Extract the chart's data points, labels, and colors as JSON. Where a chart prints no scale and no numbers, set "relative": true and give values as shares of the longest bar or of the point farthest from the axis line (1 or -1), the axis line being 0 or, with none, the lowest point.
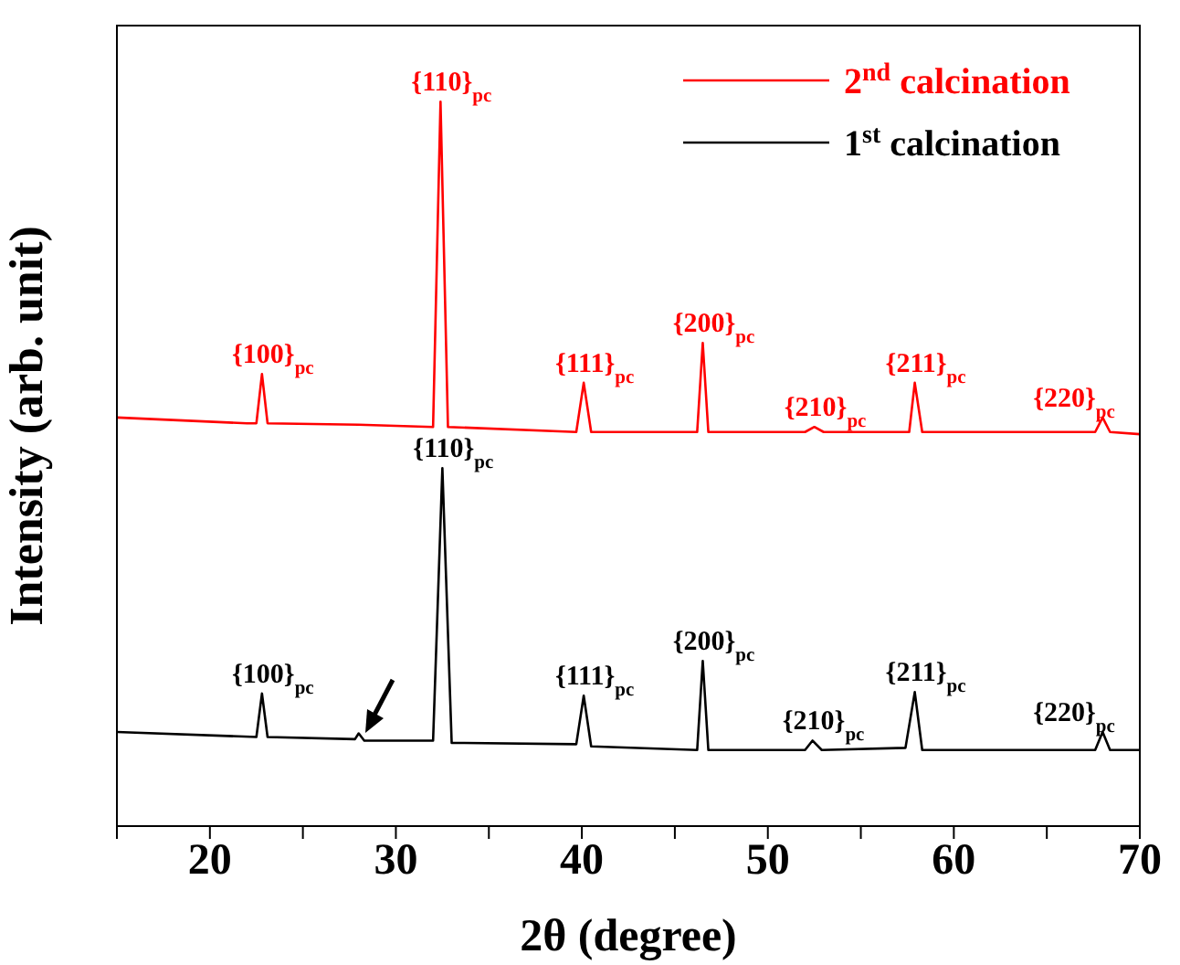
{
  "chart_data": {
    "type": "line",
    "relative": true,
    "xlabel": "2θ (degree)",
    "ylabel": "Intensity (arb. unit)",
    "xlim": [
      15,
      70
    ],
    "xticks": [
      {
        "value": 15,
        "label": null
      },
      20,
      {
        "value": 25,
        "label": null
      },
      30,
      {
        "value": 35,
        "label": null
      },
      40,
      {
        "value": 45,
        "label": null
      },
      50,
      {
        "value": 55,
        "label": null
      },
      60,
      {
        "value": 65,
        "label": null
      },
      70
    ],
    "legend": "top right",
    "grid": false,
    "marker": "none",
    "line_style": "solid",
    "series": [
      {
        "name": "2$^{nd}$ calcination",
        "color": "#ff0000",
        "x": [
          15,
          22,
          22.5,
          22.8,
          23.1,
          28,
          32,
          32.4,
          32.8,
          39.7,
          40.1,
          40.5,
          46.2,
          46.5,
          46.8,
          52,
          52.5,
          53,
          57.6,
          57.9,
          58.3,
          67.6,
          68,
          68.4,
          70
        ],
        "values": [
          0.564,
          0.556,
          0.556,
          0.624,
          0.556,
          0.554,
          0.551,
          1,
          0.551,
          0.544,
          0.612,
          0.544,
          0.544,
          0.667,
          0.544,
          0.544,
          0.551,
          0.544,
          0.544,
          0.612,
          0.544,
          0.544,
          0.564,
          0.544,
          0.541
        ]
      },
      {
        "name": "1$^{st}$ calcination",
        "color": "#000000",
        "x": [
          15,
          22.5,
          22.8,
          23.1,
          27.8,
          28,
          28.3,
          32,
          32.5,
          33,
          39.7,
          40.1,
          40.5,
          46.2,
          46.5,
          46.8,
          52,
          52.4,
          52.9,
          57.4,
          57.9,
          58.3,
          67.6,
          68,
          68.4,
          70
        ],
        "values": [
          0.13,
          0.123,
          0.183,
          0.123,
          0.12,
          0.128,
          0.118,
          0.118,
          0.494,
          0.115,
          0.113,
          0.18,
          0.11,
          0.105,
          0.228,
          0.105,
          0.105,
          0.118,
          0.105,
          0.108,
          0.185,
          0.105,
          0.105,
          0.13,
          0.105,
          0.105
        ]
      }
    ],
    "annotations": [
      {
        "text": "{100}$_{pc}$",
        "x": 22.8,
        "y": 0.624
      },
      {
        "text": "{110}$_{pc}$",
        "x": 32.4,
        "y": 1
      },
      {
        "text": "{111}$_{pc}$",
        "x": 40.1,
        "y": 0.612
      },
      {
        "text": "{200}$_{pc}$",
        "x": 46.5,
        "y": 0.667
      },
      {
        "text": "{210}$_{pc}$",
        "x": 52.5,
        "y": 0.551
      },
      {
        "text": "{211}$_{pc}$",
        "x": 57.9,
        "y": 0.612
      },
      {
        "text": "{220}$_{pc}$",
        "x": 68,
        "y": 0.564
      },
      {
        "text": "{100}$_{pc}$",
        "x": 22.8,
        "y": 0.183
      },
      {
        "text": "{110}$_{pc}$",
        "x": 32.5,
        "y": 0.494
      },
      {
        "text": "{111}$_{pc}$",
        "x": 40.1,
        "y": 0.18
      },
      {
        "text": "{200}$_{pc}$",
        "x": 46.5,
        "y": 0.228
      },
      {
        "text": "{210}$_{pc}$",
        "x": 52.4,
        "y": 0.118
      },
      {
        "text": "{211}$_{pc}$",
        "x": 57.9,
        "y": 0.185
      },
      {
        "text": "{220}$_{pc}$",
        "x": 68,
        "y": 0.13
      }
    ]
  }
}
